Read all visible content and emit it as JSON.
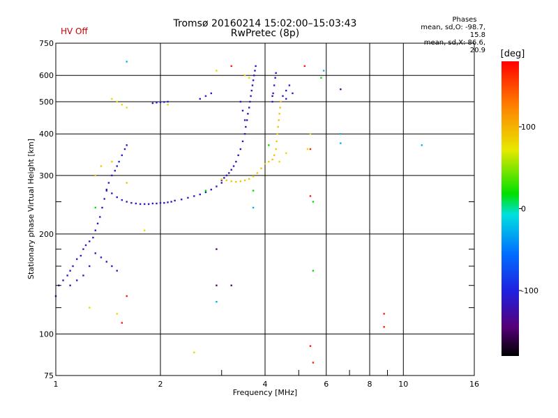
{
  "header": {
    "status_label": "HV Off",
    "title_line1": "Tromsø 20160214 15:02:00–15:03:43",
    "title_line2": "RwPretec (8p)"
  },
  "phases": {
    "title": "Phases",
    "line_o": "mean, sd,O:  -98.7, 15.8",
    "line_x": "mean, sd,X:   86.6, 20.9"
  },
  "colorbar": {
    "unit_label": "[deg]",
    "range": [
      -180,
      180
    ],
    "tick_values": [
      100,
      0,
      -100
    ],
    "tick_labels": [
      "100",
      "0",
      "-100"
    ]
  },
  "chart_data": {
    "type": "scatter",
    "title": "Tromsø 20160214 15:02:00–15:03:43",
    "subtitle": "RwPretec (8p)",
    "xlabel": "Frequency [MHz]",
    "ylabel": "Stationary phase Virtual Height [km]",
    "x_scale": "log",
    "y_scale": "log",
    "xlim": [
      1,
      16
    ],
    "ylim": [
      75,
      750
    ],
    "x_ticks": [
      1,
      2,
      4,
      6,
      8,
      10,
      16
    ],
    "x_tick_labels": [
      "1",
      "2",
      "4",
      "6",
      "8",
      "10",
      "16"
    ],
    "x_minor_ticks": [
      3,
      5,
      7,
      9
    ],
    "y_ticks": [
      75,
      100,
      200,
      300,
      400,
      500,
      600,
      750
    ],
    "y_tick_labels": [
      "75",
      "100",
      "200",
      "300",
      "400",
      "500",
      "600",
      "750"
    ],
    "y_minor_ticks": [
      120,
      140,
      160,
      180,
      250
    ],
    "grid": true,
    "color_by": "phase (deg)",
    "traces": [
      {
        "phase": -110,
        "points": [
          [
            1.0,
            130
          ],
          [
            1.02,
            140
          ],
          [
            1.05,
            145
          ],
          [
            1.08,
            150
          ],
          [
            1.1,
            155
          ],
          [
            1.12,
            160
          ],
          [
            1.15,
            168
          ],
          [
            1.18,
            172
          ],
          [
            1.2,
            180
          ],
          [
            1.22,
            185
          ],
          [
            1.25,
            190
          ],
          [
            1.28,
            195
          ],
          [
            1.3,
            205
          ],
          [
            1.32,
            215
          ],
          [
            1.34,
            225
          ],
          [
            1.36,
            240
          ],
          [
            1.38,
            255
          ],
          [
            1.4,
            270
          ],
          [
            1.42,
            285
          ],
          [
            1.45,
            300
          ],
          [
            1.48,
            310
          ],
          [
            1.5,
            320
          ],
          [
            1.52,
            330
          ],
          [
            1.55,
            345
          ],
          [
            1.58,
            360
          ],
          [
            1.6,
            370
          ],
          [
            1.3,
            175
          ],
          [
            1.25,
            160
          ],
          [
            1.2,
            150
          ],
          [
            1.15,
            145
          ],
          [
            1.1,
            140
          ],
          [
            1.35,
            170
          ],
          [
            1.4,
            165
          ],
          [
            1.45,
            160
          ],
          [
            1.5,
            155
          ]
        ]
      },
      {
        "phase": -110,
        "points": [
          [
            1.4,
            272
          ],
          [
            1.45,
            265
          ],
          [
            1.5,
            258
          ],
          [
            1.55,
            253
          ],
          [
            1.6,
            250
          ],
          [
            1.65,
            248
          ],
          [
            1.7,
            247
          ],
          [
            1.75,
            246
          ],
          [
            1.8,
            246
          ],
          [
            1.85,
            246
          ],
          [
            1.9,
            247
          ],
          [
            1.95,
            247
          ],
          [
            2.0,
            248
          ],
          [
            2.05,
            248
          ],
          [
            2.1,
            249
          ],
          [
            2.15,
            250
          ],
          [
            2.2,
            252
          ],
          [
            2.3,
            254
          ],
          [
            2.4,
            257
          ],
          [
            2.5,
            260
          ],
          [
            2.6,
            263
          ],
          [
            2.7,
            267
          ],
          [
            2.8,
            272
          ],
          [
            2.9,
            278
          ],
          [
            3.0,
            285
          ]
        ]
      },
      {
        "phase": -115,
        "points": [
          [
            3.0,
            290
          ],
          [
            3.05,
            295
          ],
          [
            3.1,
            300
          ],
          [
            3.15,
            305
          ],
          [
            3.2,
            312
          ],
          [
            3.25,
            320
          ],
          [
            3.3,
            330
          ],
          [
            3.35,
            345
          ],
          [
            3.4,
            360
          ],
          [
            3.45,
            380
          ],
          [
            3.5,
            400
          ],
          [
            3.52,
            420
          ],
          [
            3.55,
            440
          ],
          [
            3.57,
            460
          ],
          [
            3.6,
            480
          ],
          [
            3.62,
            500
          ],
          [
            3.64,
            520
          ],
          [
            3.66,
            540
          ],
          [
            3.68,
            560
          ],
          [
            3.7,
            580
          ],
          [
            3.72,
            600
          ],
          [
            3.74,
            620
          ],
          [
            3.76,
            640
          ],
          [
            3.5,
            440
          ],
          [
            3.45,
            470
          ],
          [
            3.4,
            500
          ]
        ]
      },
      {
        "phase": 90,
        "points": [
          [
            3.0,
            292
          ],
          [
            3.1,
            290
          ],
          [
            3.2,
            288
          ],
          [
            3.3,
            287
          ],
          [
            3.4,
            288
          ],
          [
            3.5,
            290
          ],
          [
            3.6,
            293
          ],
          [
            3.7,
            298
          ],
          [
            3.8,
            305
          ],
          [
            3.9,
            315
          ],
          [
            4.0,
            325
          ],
          [
            4.1,
            330
          ],
          [
            4.2,
            335
          ],
          [
            4.25,
            345
          ],
          [
            4.3,
            360
          ],
          [
            4.32,
            380
          ],
          [
            4.34,
            400
          ],
          [
            4.36,
            420
          ],
          [
            4.38,
            440
          ],
          [
            4.4,
            460
          ],
          [
            4.42,
            480
          ],
          [
            4.44,
            500
          ],
          [
            1.3,
            300
          ],
          [
            1.35,
            320
          ],
          [
            1.45,
            330
          ],
          [
            1.6,
            285
          ]
        ]
      },
      {
        "phase": -105,
        "points": [
          [
            4.2,
            500
          ],
          [
            4.22,
            530
          ],
          [
            4.25,
            560
          ],
          [
            4.28,
            590
          ],
          [
            4.3,
            610
          ],
          [
            4.5,
            520
          ],
          [
            4.6,
            540
          ],
          [
            4.7,
            560
          ],
          [
            4.8,
            530
          ],
          [
            4.6,
            510
          ],
          [
            1.9,
            495
          ],
          [
            1.95,
            497
          ],
          [
            2.0,
            498
          ],
          [
            2.05,
            499
          ],
          [
            2.1,
            500
          ],
          [
            2.6,
            510
          ],
          [
            2.7,
            520
          ],
          [
            2.8,
            530
          ]
        ]
      },
      {
        "phase": 80,
        "points": [
          [
            1.45,
            510
          ],
          [
            1.5,
            500
          ],
          [
            1.55,
            490
          ],
          [
            1.6,
            480
          ],
          [
            2.1,
            490
          ],
          [
            2.9,
            620
          ],
          [
            3.5,
            600
          ],
          [
            3.6,
            590
          ],
          [
            1.25,
            120
          ],
          [
            1.5,
            115
          ],
          [
            1.8,
            205
          ],
          [
            2.5,
            88
          ],
          [
            5.4,
            400
          ],
          [
            5.3,
            360
          ],
          [
            4.4,
            330
          ],
          [
            4.6,
            350
          ]
        ]
      },
      {
        "phase": 170,
        "points": [
          [
            3.2,
            640
          ],
          [
            5.2,
            640
          ],
          [
            5.4,
            360
          ],
          [
            5.4,
            260
          ],
          [
            5.4,
            92
          ],
          [
            5.5,
            82
          ],
          [
            8.8,
            115
          ],
          [
            8.8,
            105
          ],
          [
            1.6,
            130
          ],
          [
            1.55,
            108
          ]
        ]
      },
      {
        "phase": 20,
        "points": [
          [
            5.8,
            590
          ],
          [
            5.5,
            250
          ],
          [
            5.5,
            155
          ],
          [
            4.1,
            370
          ],
          [
            3.7,
            270
          ],
          [
            2.7,
            270
          ],
          [
            1.3,
            240
          ]
        ]
      },
      {
        "phase": -30,
        "points": [
          [
            1.6,
            660
          ],
          [
            6.6,
            400
          ],
          [
            6.6,
            375
          ],
          [
            11.3,
            370
          ],
          [
            5.9,
            620
          ],
          [
            2.9,
            125
          ],
          [
            3.7,
            240
          ]
        ]
      },
      {
        "phase": -140,
        "points": [
          [
            6.6,
            545
          ],
          [
            2.9,
            180
          ],
          [
            2.9,
            140
          ],
          [
            3.2,
            140
          ],
          [
            4.2,
            520
          ]
        ]
      }
    ]
  }
}
